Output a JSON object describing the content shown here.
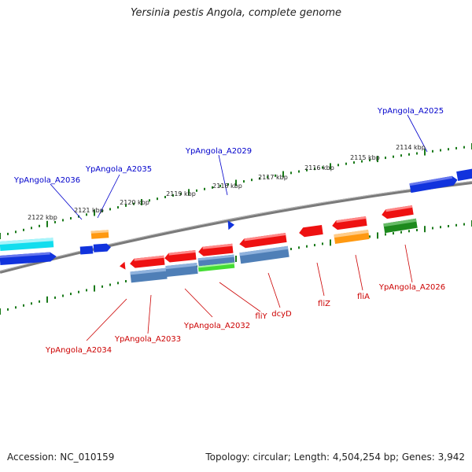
{
  "title": "Yersinia pestis Angola, complete genome",
  "footer": {
    "accession": "Accession: NC_010159",
    "summary": "Topology: circular; Length: 4,504,254 bp; Genes: 3,942"
  },
  "colors": {
    "forward_label": "#0000cc",
    "reverse_label": "#cc0000",
    "tick_green": "#1a7a1a",
    "backbone": "#7a7a7a",
    "red": "#ee1111",
    "blue": "#1133dd",
    "cyan": "#11ddee",
    "orange": "#ff9911",
    "steelblue": "#4f7fb7",
    "green": "#1d8a1d",
    "lime": "#44dd33"
  },
  "ticks": [
    {
      "label": "2114 kbp"
    },
    {
      "label": "2115 kbp"
    },
    {
      "label": "2116 kbp"
    },
    {
      "label": "2117 kbp"
    },
    {
      "label": "2118 kbp"
    },
    {
      "label": "2119 kbp"
    },
    {
      "label": "2120 kbp"
    },
    {
      "label": "2121 kbp"
    },
    {
      "label": "2122 kbp"
    }
  ],
  "forward_labels": [
    {
      "text": "YpAngola_A2025"
    },
    {
      "text": "YpAngola_A2029"
    },
    {
      "text": "YpAngola_A2035"
    },
    {
      "text": "YpAngola_A2036"
    }
  ],
  "reverse_labels": [
    {
      "text": "YpAngola_A2026"
    },
    {
      "text": "fliA"
    },
    {
      "text": "fliZ"
    },
    {
      "text": "dcyD"
    },
    {
      "text": "fliY"
    },
    {
      "text": "YpAngola_A2032"
    },
    {
      "text": "YpAngola_A2033"
    },
    {
      "text": "YpAngola_A2034"
    }
  ]
}
